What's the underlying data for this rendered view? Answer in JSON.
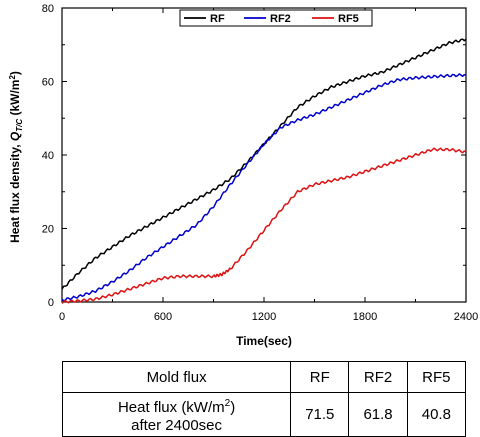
{
  "chart_data": {
    "type": "line",
    "xlabel": "Time(sec)",
    "ylabel_main": "Heat flux density, ",
    "ylabel_q": "Q",
    "ylabel_sub": "T/C",
    "ylabel_unit_pre": " (kW/m",
    "ylabel_unit_sup": "2",
    "ylabel_unit_post": ")",
    "xlim": [
      0,
      2400
    ],
    "ylim": [
      0,
      80
    ],
    "xticks": [
      0,
      600,
      1200,
      1800,
      2400
    ],
    "yticks": [
      0,
      20,
      40,
      60,
      80
    ],
    "legend_position": "top-right",
    "series": [
      {
        "name": "RF",
        "color": "#000000",
        "x": [
          0,
          100,
          200,
          300,
          400,
          500,
          600,
          700,
          800,
          900,
          1000,
          1100,
          1200,
          1300,
          1400,
          1500,
          1600,
          1700,
          1800,
          1900,
          2000,
          2100,
          2200,
          2300,
          2400
        ],
        "y": [
          3.5,
          8,
          12,
          15,
          18,
          20.5,
          23,
          25.5,
          28,
          30.5,
          33.5,
          38,
          43,
          48,
          53,
          56,
          58.5,
          60,
          61.5,
          62.5,
          64.5,
          66.5,
          68.5,
          70.5,
          71.5
        ]
      },
      {
        "name": "RF2",
        "color": "#0000cc",
        "x": [
          0,
          100,
          200,
          300,
          400,
          500,
          600,
          700,
          800,
          900,
          1000,
          1100,
          1200,
          1300,
          1400,
          1500,
          1600,
          1700,
          1800,
          1900,
          2000,
          2100,
          2200,
          2300,
          2400
        ],
        "y": [
          0.5,
          1.5,
          3,
          5.5,
          8.5,
          12,
          15,
          18,
          21,
          26,
          32,
          37.5,
          43,
          47.5,
          49.5,
          51,
          53,
          55,
          57,
          59,
          60.5,
          61,
          61.3,
          61.6,
          61.8
        ]
      },
      {
        "name": "RF5",
        "color": "#dd1111",
        "x": [
          0,
          100,
          200,
          300,
          400,
          500,
          600,
          700,
          800,
          900,
          950,
          1000,
          1100,
          1200,
          1300,
          1400,
          1500,
          1600,
          1700,
          1800,
          1900,
          2000,
          2100,
          2200,
          2300,
          2400
        ],
        "y": [
          0,
          0.3,
          0.8,
          2,
          3.5,
          5,
          6.5,
          7,
          7,
          7,
          7.5,
          9,
          14,
          19.5,
          25,
          30,
          32,
          33,
          34,
          35.5,
          37,
          38.5,
          40,
          41.5,
          41.5,
          40.8
        ]
      }
    ]
  },
  "table": {
    "header": [
      "Mold flux",
      "RF",
      "RF2",
      "RF5"
    ],
    "row_label_line1_pre": "Heat flux (kW/m",
    "row_label_sup": "2",
    "row_label_line1_post": ")",
    "row_label_line2": "after 2400sec",
    "values": [
      "71.5",
      "61.8",
      "40.8"
    ]
  }
}
